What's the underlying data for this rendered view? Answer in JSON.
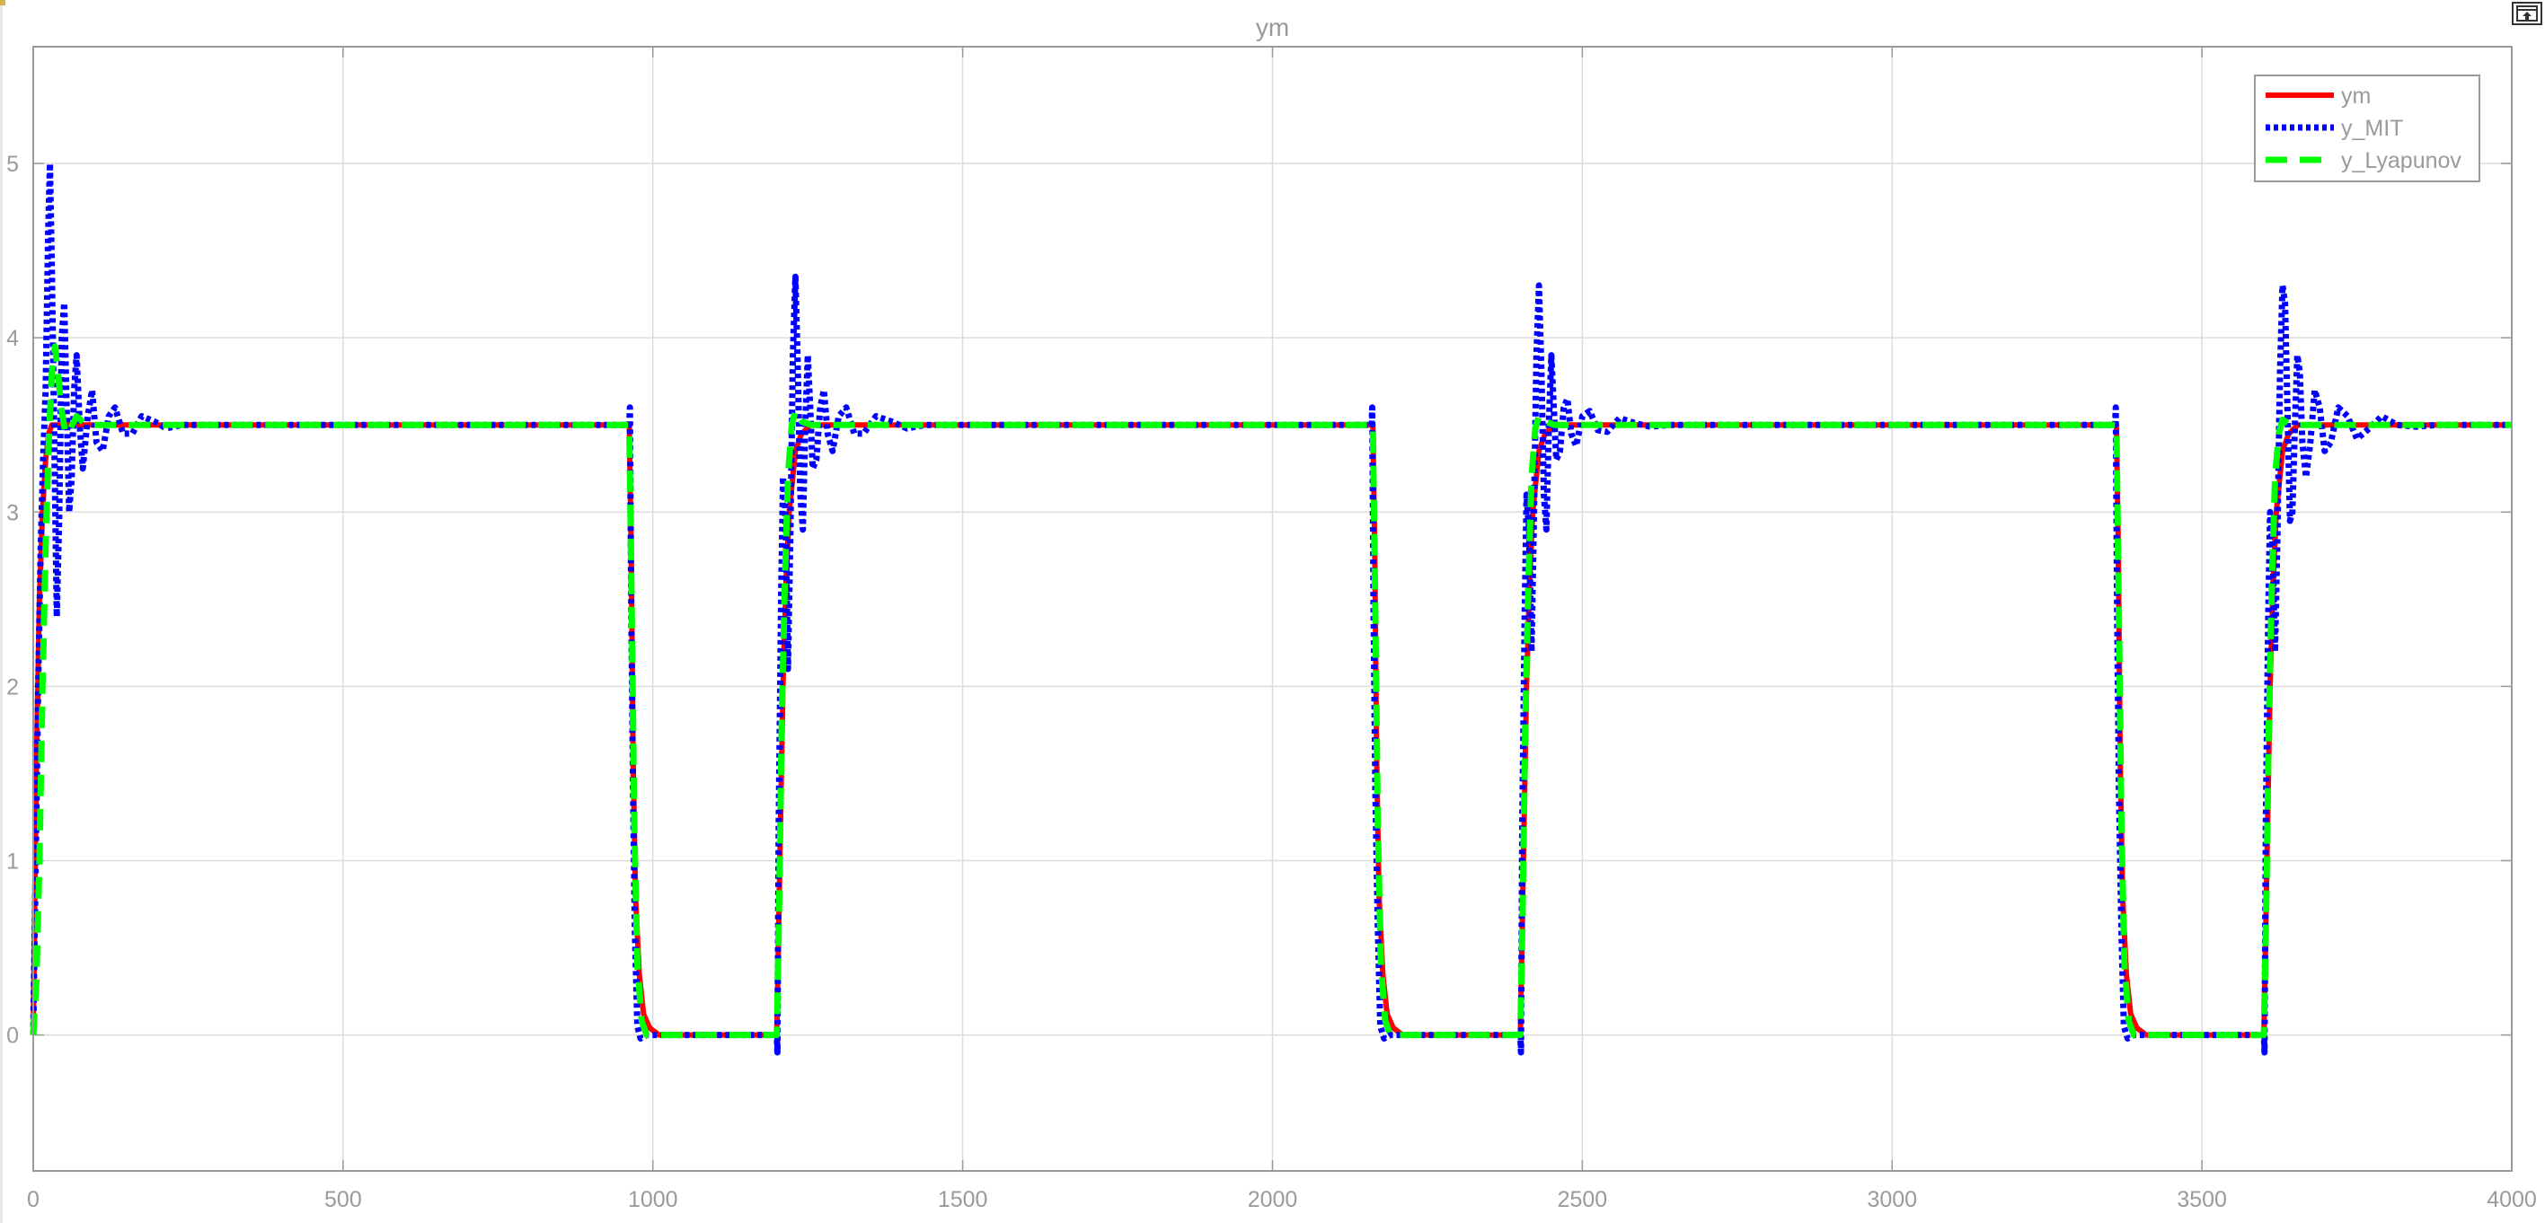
{
  "window": {
    "undock_icon": "undock-icon",
    "accent_corner_color": "#d8b24a"
  },
  "chart_data": {
    "type": "line",
    "title": "ym",
    "xlabel": "",
    "ylabel": "",
    "xlim": [
      0,
      4000
    ],
    "ylim": [
      -0.78,
      5.67
    ],
    "xticks": [
      0,
      500,
      1000,
      1500,
      2000,
      2500,
      3000,
      3500,
      4000
    ],
    "yticks": [
      0,
      1,
      2,
      3,
      4,
      5
    ],
    "grid": true,
    "legend_position": "top-right",
    "colors": {
      "background": "#ffffff",
      "grid": "#dcdcdc",
      "axis": "#9a9a9a",
      "text": "#9a9a9a"
    },
    "series": [
      {
        "name": "ym",
        "color": "#ff0000",
        "dash": "solid",
        "points": [
          [
            0,
            0
          ],
          [
            5,
            1.5
          ],
          [
            10,
            2.5
          ],
          [
            15,
            3.0
          ],
          [
            20,
            3.3
          ],
          [
            25,
            3.45
          ],
          [
            30,
            3.5
          ],
          [
            960,
            3.5
          ],
          [
            962,
            3.5
          ],
          [
            965,
            2.8
          ],
          [
            968,
            1.6
          ],
          [
            972,
            0.8
          ],
          [
            978,
            0.35
          ],
          [
            985,
            0.12
          ],
          [
            995,
            0.04
          ],
          [
            1010,
            0.0
          ],
          [
            1200,
            0.0
          ],
          [
            1205,
            1.0
          ],
          [
            1210,
            2.0
          ],
          [
            1215,
            2.6
          ],
          [
            1220,
            3.0
          ],
          [
            1230,
            3.35
          ],
          [
            1240,
            3.45
          ],
          [
            1255,
            3.5
          ],
          [
            2160,
            3.5
          ],
          [
            2162,
            3.5
          ],
          [
            2165,
            2.8
          ],
          [
            2168,
            1.6
          ],
          [
            2172,
            0.8
          ],
          [
            2178,
            0.35
          ],
          [
            2185,
            0.12
          ],
          [
            2195,
            0.04
          ],
          [
            2210,
            0.0
          ],
          [
            2400,
            0.0
          ],
          [
            2405,
            1.0
          ],
          [
            2410,
            2.0
          ],
          [
            2415,
            2.6
          ],
          [
            2420,
            3.0
          ],
          [
            2430,
            3.35
          ],
          [
            2440,
            3.45
          ],
          [
            2455,
            3.5
          ],
          [
            3360,
            3.5
          ],
          [
            3362,
            3.5
          ],
          [
            3365,
            2.8
          ],
          [
            3368,
            1.6
          ],
          [
            3372,
            0.8
          ],
          [
            3378,
            0.35
          ],
          [
            3385,
            0.12
          ],
          [
            3395,
            0.04
          ],
          [
            3410,
            0.0
          ],
          [
            3600,
            0.0
          ],
          [
            3605,
            1.0
          ],
          [
            3610,
            2.0
          ],
          [
            3615,
            2.6
          ],
          [
            3620,
            3.0
          ],
          [
            3630,
            3.35
          ],
          [
            3640,
            3.45
          ],
          [
            3655,
            3.5
          ],
          [
            4000,
            3.5
          ]
        ]
      },
      {
        "name": "y_MIT",
        "color": "#0000ff",
        "dash": "dotted",
        "points": [
          [
            0,
            0
          ],
          [
            4,
            1.0
          ],
          [
            8,
            2.0
          ],
          [
            12,
            2.8
          ],
          [
            16,
            3.3
          ],
          [
            20,
            3.7
          ],
          [
            24,
            4.6
          ],
          [
            27,
            5.0
          ],
          [
            30,
            4.4
          ],
          [
            34,
            3.4
          ],
          [
            38,
            2.4
          ],
          [
            42,
            3.0
          ],
          [
            46,
            4.0
          ],
          [
            50,
            4.2
          ],
          [
            54,
            3.6
          ],
          [
            58,
            3.0
          ],
          [
            62,
            3.2
          ],
          [
            66,
            3.7
          ],
          [
            70,
            3.9
          ],
          [
            75,
            3.5
          ],
          [
            80,
            3.25
          ],
          [
            88,
            3.55
          ],
          [
            95,
            3.7
          ],
          [
            102,
            3.4
          ],
          [
            112,
            3.35
          ],
          [
            122,
            3.55
          ],
          [
            132,
            3.6
          ],
          [
            145,
            3.45
          ],
          [
            160,
            3.45
          ],
          [
            175,
            3.55
          ],
          [
            195,
            3.52
          ],
          [
            215,
            3.48
          ],
          [
            240,
            3.5
          ],
          [
            962,
            3.5
          ],
          [
            963,
            3.6
          ],
          [
            965,
            2.5
          ],
          [
            968,
            1.4
          ],
          [
            971,
            0.6
          ],
          [
            975,
            0.05
          ],
          [
            980,
            -0.02
          ],
          [
            990,
            0.0
          ],
          [
            1200,
            0.0
          ],
          [
            1201,
            -0.1
          ],
          [
            1203,
            1.2
          ],
          [
            1207,
            2.5
          ],
          [
            1210,
            3.2
          ],
          [
            1214,
            3.0
          ],
          [
            1218,
            2.1
          ],
          [
            1222,
            2.9
          ],
          [
            1226,
            3.9
          ],
          [
            1230,
            4.35
          ],
          [
            1234,
            3.8
          ],
          [
            1238,
            3.1
          ],
          [
            1242,
            2.9
          ],
          [
            1246,
            3.5
          ],
          [
            1250,
            3.9
          ],
          [
            1254,
            3.6
          ],
          [
            1258,
            3.25
          ],
          [
            1264,
            3.3
          ],
          [
            1270,
            3.6
          ],
          [
            1276,
            3.7
          ],
          [
            1282,
            3.45
          ],
          [
            1290,
            3.35
          ],
          [
            1300,
            3.55
          ],
          [
            1312,
            3.6
          ],
          [
            1325,
            3.45
          ],
          [
            1340,
            3.45
          ],
          [
            1360,
            3.55
          ],
          [
            1385,
            3.52
          ],
          [
            1410,
            3.48
          ],
          [
            1440,
            3.5
          ],
          [
            2160,
            3.5
          ],
          [
            2161,
            3.6
          ],
          [
            2163,
            2.5
          ],
          [
            2166,
            1.4
          ],
          [
            2170,
            0.6
          ],
          [
            2174,
            0.05
          ],
          [
            2180,
            -0.02
          ],
          [
            2190,
            0.0
          ],
          [
            2400,
            0.0
          ],
          [
            2401,
            -0.1
          ],
          [
            2403,
            1.2
          ],
          [
            2407,
            2.4
          ],
          [
            2410,
            3.1
          ],
          [
            2414,
            2.9
          ],
          [
            2418,
            2.2
          ],
          [
            2422,
            3.0
          ],
          [
            2426,
            3.9
          ],
          [
            2430,
            4.3
          ],
          [
            2434,
            3.8
          ],
          [
            2438,
            3.1
          ],
          [
            2442,
            2.9
          ],
          [
            2446,
            3.5
          ],
          [
            2450,
            3.9
          ],
          [
            2454,
            3.6
          ],
          [
            2458,
            3.3
          ],
          [
            2464,
            3.35
          ],
          [
            2470,
            3.6
          ],
          [
            2476,
            3.65
          ],
          [
            2482,
            3.45
          ],
          [
            2490,
            3.38
          ],
          [
            2500,
            3.55
          ],
          [
            2512,
            3.58
          ],
          [
            2525,
            3.47
          ],
          [
            2540,
            3.46
          ],
          [
            2560,
            3.54
          ],
          [
            2585,
            3.51
          ],
          [
            2610,
            3.49
          ],
          [
            2640,
            3.5
          ],
          [
            3360,
            3.5
          ],
          [
            3361,
            3.6
          ],
          [
            3363,
            2.5
          ],
          [
            3366,
            1.4
          ],
          [
            3370,
            0.6
          ],
          [
            3374,
            0.05
          ],
          [
            3380,
            -0.02
          ],
          [
            3390,
            0.0
          ],
          [
            3600,
            0.0
          ],
          [
            3601,
            -0.1
          ],
          [
            3603,
            1.2
          ],
          [
            3607,
            2.4
          ],
          [
            3610,
            3.0
          ],
          [
            3614,
            2.8
          ],
          [
            3618,
            2.2
          ],
          [
            3622,
            2.9
          ],
          [
            3626,
            3.8
          ],
          [
            3630,
            4.3
          ],
          [
            3634,
            4.2
          ],
          [
            3638,
            3.6
          ],
          [
            3642,
            2.95
          ],
          [
            3646,
            3.0
          ],
          [
            3650,
            3.5
          ],
          [
            3654,
            3.9
          ],
          [
            3658,
            3.8
          ],
          [
            3662,
            3.4
          ],
          [
            3668,
            3.2
          ],
          [
            3675,
            3.4
          ],
          [
            3682,
            3.7
          ],
          [
            3690,
            3.6
          ],
          [
            3698,
            3.35
          ],
          [
            3708,
            3.4
          ],
          [
            3720,
            3.6
          ],
          [
            3735,
            3.55
          ],
          [
            3750,
            3.42
          ],
          [
            3770,
            3.48
          ],
          [
            3790,
            3.55
          ],
          [
            3815,
            3.5
          ],
          [
            3845,
            3.49
          ],
          [
            3880,
            3.5
          ],
          [
            4000,
            3.5
          ]
        ]
      },
      {
        "name": "y_Lyapunov",
        "color": "#00ff00",
        "dash": "dashed",
        "points": [
          [
            0,
            0
          ],
          [
            5,
            0.3
          ],
          [
            10,
            1.0
          ],
          [
            15,
            2.0
          ],
          [
            20,
            2.8
          ],
          [
            25,
            3.4
          ],
          [
            30,
            3.8
          ],
          [
            35,
            3.95
          ],
          [
            40,
            3.8
          ],
          [
            45,
            3.6
          ],
          [
            52,
            3.45
          ],
          [
            60,
            3.48
          ],
          [
            70,
            3.55
          ],
          [
            85,
            3.5
          ],
          [
            960,
            3.5
          ],
          [
            962,
            3.5
          ],
          [
            966,
            2.4
          ],
          [
            970,
            1.2
          ],
          [
            975,
            0.4
          ],
          [
            982,
            0.08
          ],
          [
            990,
            0.0
          ],
          [
            1200,
            0.0
          ],
          [
            1204,
            0.8
          ],
          [
            1208,
            1.8
          ],
          [
            1213,
            2.6
          ],
          [
            1218,
            3.2
          ],
          [
            1224,
            3.5
          ],
          [
            1230,
            3.58
          ],
          [
            1240,
            3.52
          ],
          [
            1255,
            3.5
          ],
          [
            2160,
            3.5
          ],
          [
            2162,
            3.5
          ],
          [
            2166,
            2.4
          ],
          [
            2170,
            1.2
          ],
          [
            2175,
            0.4
          ],
          [
            2182,
            0.08
          ],
          [
            2190,
            0.0
          ],
          [
            2400,
            0.0
          ],
          [
            2404,
            0.8
          ],
          [
            2408,
            1.8
          ],
          [
            2413,
            2.6
          ],
          [
            2418,
            3.2
          ],
          [
            2424,
            3.48
          ],
          [
            2430,
            3.55
          ],
          [
            2440,
            3.52
          ],
          [
            2455,
            3.5
          ],
          [
            3360,
            3.5
          ],
          [
            3362,
            3.5
          ],
          [
            3366,
            2.4
          ],
          [
            3370,
            1.2
          ],
          [
            3375,
            0.4
          ],
          [
            3382,
            0.08
          ],
          [
            3390,
            0.0
          ],
          [
            3600,
            0.0
          ],
          [
            3604,
            0.8
          ],
          [
            3608,
            1.8
          ],
          [
            3613,
            2.6
          ],
          [
            3618,
            3.2
          ],
          [
            3624,
            3.45
          ],
          [
            3630,
            3.53
          ],
          [
            3640,
            3.51
          ],
          [
            3655,
            3.5
          ],
          [
            4000,
            3.5
          ]
        ]
      }
    ]
  }
}
